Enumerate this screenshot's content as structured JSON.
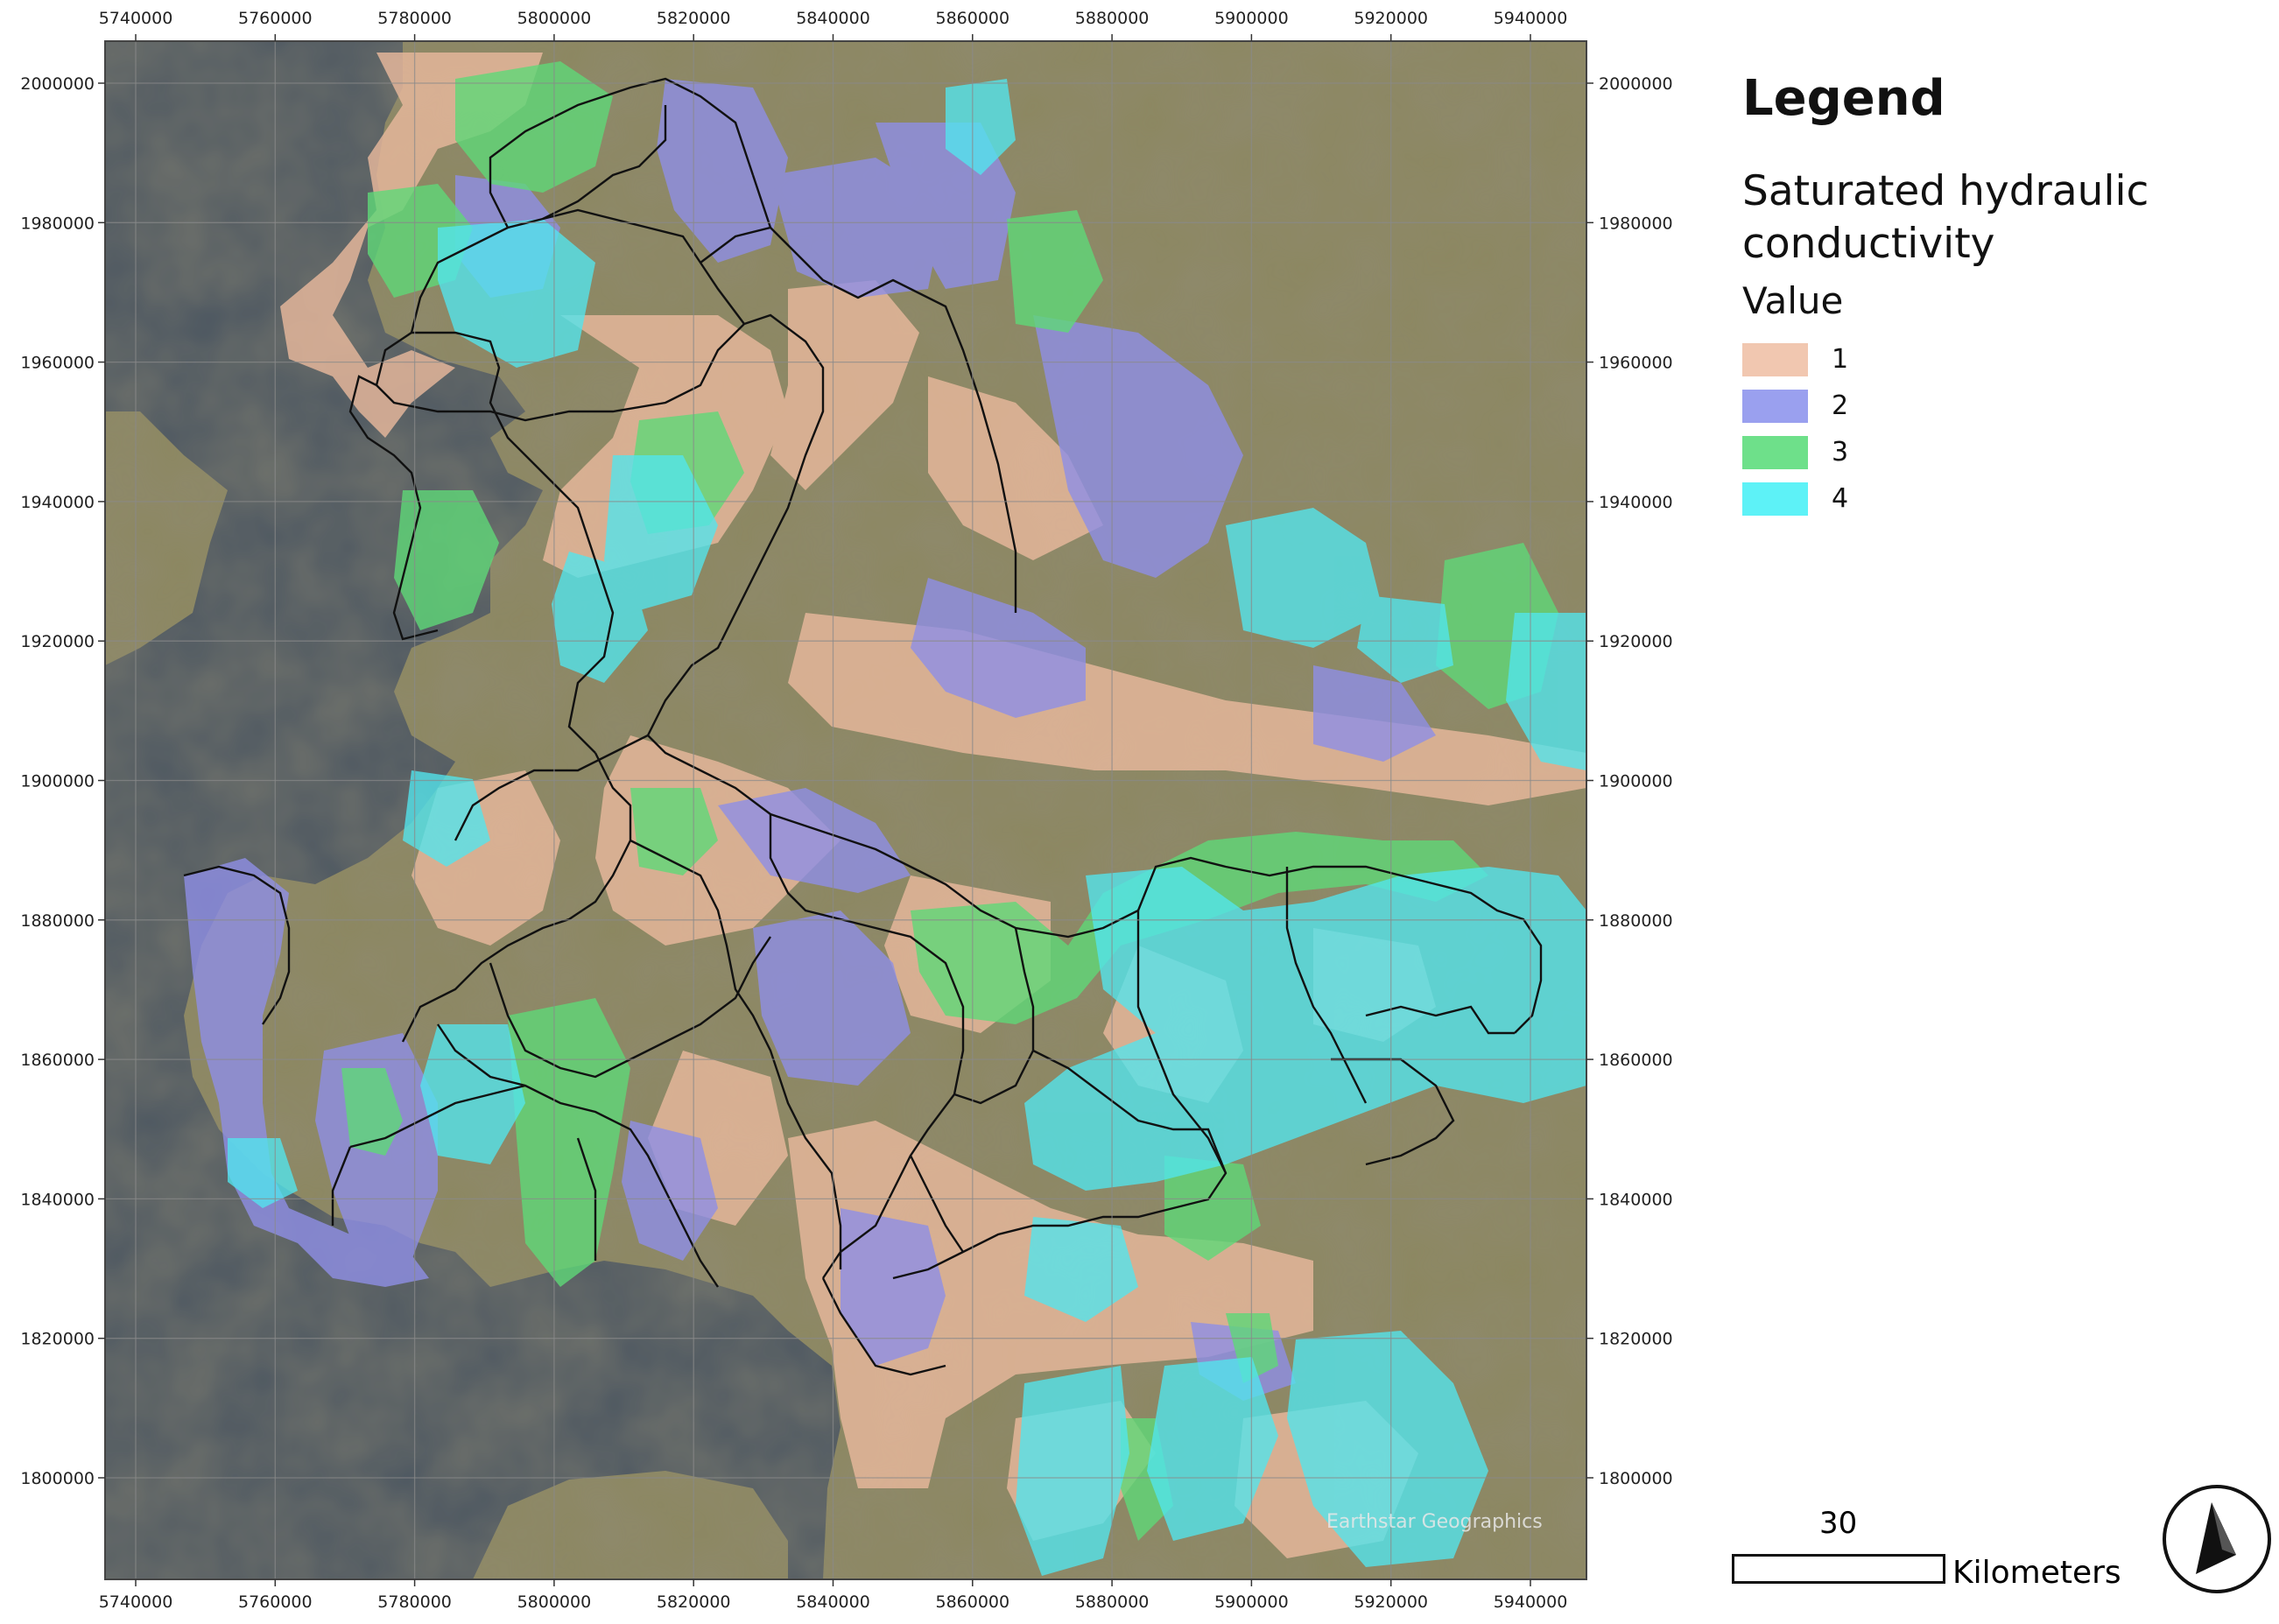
{
  "map": {
    "type": "raster-overlay-map",
    "x_ticks": [
      "5740000",
      "5760000",
      "5780000",
      "5800000",
      "5820000",
      "5840000",
      "5860000",
      "5880000",
      "5900000",
      "5920000",
      "5940000"
    ],
    "y_ticks": [
      "2000000",
      "1980000",
      "1960000",
      "1940000",
      "1920000",
      "1900000",
      "1880000",
      "1860000",
      "1840000",
      "1820000",
      "1800000"
    ],
    "attribution": "Earthstar Geographics",
    "colors": {
      "sea": "#4a5560",
      "land": "#8c8760",
      "class_1": "#e8b89c",
      "class_2": "#8f8fe6",
      "class_3": "#5fd878",
      "class_4": "#52e6ee",
      "grid": "#8a8a8a",
      "boundary": "#111111"
    }
  },
  "legend": {
    "title": "Legend",
    "subtitle": "Saturated hydraulic conductivity",
    "value_label": "Value",
    "items": [
      {
        "label": "1",
        "color": "#f1c7b0"
      },
      {
        "label": "2",
        "color": "#9aa0ef"
      },
      {
        "label": "3",
        "color": "#6ee08a"
      },
      {
        "label": "4",
        "color": "#5df2f7"
      }
    ]
  },
  "scalebar": {
    "value": "30",
    "unit": "Kilometers"
  },
  "north_arrow": {
    "icon": "north-arrow-icon"
  }
}
